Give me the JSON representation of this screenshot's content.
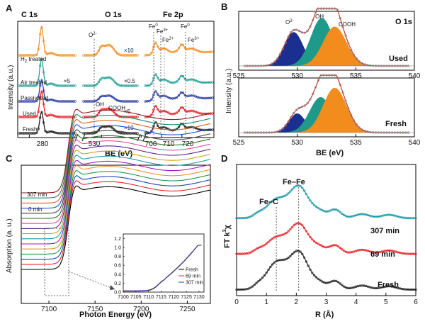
{
  "colors": {
    "H2_treated": "#f0922b",
    "Air_treated": "#2aa29a",
    "Passivated": "#2b3fa5",
    "Used": "#e8242b",
    "Fresh": "#222222",
    "O2": "#1a2f8f",
    "OH": "#1d9a8a",
    "COOH": "#f28c1c",
    "fit": "#c0392b",
    "xanes": [
      "#000000",
      "#e8242b",
      "#1f3fb4",
      "#1d9a4a",
      "#f0922b",
      "#9a1fb4",
      "#1d9aa8",
      "#c8a21d",
      "#5a2a8a",
      "#e04a9a",
      "#2a6f1d",
      "#444444",
      "#1b4fd8",
      "#d8621b",
      "#1d8a6a",
      "#8a1d1d"
    ]
  },
  "chart_data": [
    {
      "panel": "A",
      "type": "line",
      "titles": [
        "C 1s",
        "O 1s",
        "Fe 2p"
      ],
      "xlabel": "BE (eV)",
      "ylabel": "Intensity (a.u.)",
      "xticks": [
        "280",
        "530",
        "700",
        "710",
        "720"
      ],
      "series_labels": [
        "H2 treated",
        "Air treated",
        "Passivated",
        "Used",
        "Fresh"
      ],
      "multipliers": [
        "×10",
        "×5",
        "×0.5",
        "×5",
        "×10"
      ],
      "peak_labels": [
        "O2-",
        "OH",
        "COOH",
        "Fe0",
        "Fe3+",
        "Fe2+",
        "Fe0",
        "Fe3+"
      ],
      "c1s_peak": 284.8,
      "o1s_peaks": {
        "O2-": 530.0,
        "OH": 532.0,
        "COOH": 533.5
      },
      "fe2p_peaks": {
        "Fe0_2p3/2": 707.0,
        "Fe3+_2p3/2": 711.0,
        "Fe2+": 713.5,
        "Fe0_2p1/2": 720.0,
        "Fe3+_2p1/2": 724.5
      }
    },
    {
      "panel": "B",
      "type": "area",
      "title": "O 1s",
      "xlabel": "BE (eV)",
      "ylabel": "Intensity (a.u.)",
      "xlim": [
        525,
        540
      ],
      "xticks": [
        525,
        530,
        535,
        540
      ],
      "subplots": [
        {
          "name": "Used",
          "components": [
            {
              "name": "O2-",
              "center": 529.7,
              "sigma": 0.8,
              "height": 0.62
            },
            {
              "name": "OH",
              "center": 532.1,
              "sigma": 0.95,
              "height": 0.88
            },
            {
              "name": "COOH",
              "center": 533.2,
              "sigma": 1.0,
              "height": 0.72
            }
          ]
        },
        {
          "name": "Fresh",
          "components": [
            {
              "name": "O2-",
              "center": 530.0,
              "sigma": 0.7,
              "height": 0.35
            },
            {
              "name": "OH",
              "center": 532.0,
              "sigma": 0.95,
              "height": 0.65
            },
            {
              "name": "COOH",
              "center": 533.2,
              "sigma": 1.0,
              "height": 0.82
            }
          ]
        }
      ],
      "labels": [
        "O2-",
        "OH",
        "COOH",
        "O 1s",
        "Used",
        "Fresh"
      ]
    },
    {
      "panel": "C",
      "type": "line",
      "xlabel": "Photon Energy (eV)",
      "ylabel": "Absorption (a. u.)",
      "xlim": [
        7070,
        7275
      ],
      "xticks": [
        7100,
        7150,
        7200,
        7250
      ],
      "edge_energy": 7120,
      "n_series": 16,
      "time_labels": [
        "307 min",
        "0 min"
      ],
      "inset": {
        "xlim": [
          7100,
          7132
        ],
        "ylim": [
          0,
          1.3
        ],
        "xticks": [
          7100,
          7105,
          7110,
          7115,
          7120,
          7125,
          7130
        ],
        "yticks": [
          "0.0",
          "0.2",
          "0.4",
          "0.6",
          "0.8",
          "1.0",
          "1.2"
        ],
        "legend": [
          "Fresh",
          "69 min",
          "307 min"
        ],
        "legend_colors": [
          "#000000",
          "#e8242b",
          "#1f3fb4"
        ]
      }
    },
    {
      "panel": "D",
      "type": "line",
      "xlabel": "R (Å)",
      "ylabel": "FT k³χ",
      "xlim": [
        0,
        6
      ],
      "xticks": [
        0,
        1,
        2,
        3,
        4,
        5,
        6
      ],
      "annotations": [
        "Fe–C",
        "Fe–Fe"
      ],
      "fe_c_r": 1.33,
      "fe_fe_r": 2.08,
      "series": [
        {
          "name": "307 min",
          "color": "#1d9aa8",
          "offset": 2.1,
          "peak1": 0.55,
          "peak2": 0.9
        },
        {
          "name": "69 min",
          "color": "#e8242b",
          "offset": 1.05,
          "peak1": 0.48,
          "peak2": 0.85
        },
        {
          "name": "Fresh",
          "color": "#222222",
          "offset": 0.0,
          "peak1": 0.8,
          "peak2": 1.05
        }
      ]
    }
  ],
  "text": {
    "panelA": "A",
    "panelB": "B",
    "panelC": "C",
    "panelD": "D",
    "a_c1s": "C 1s",
    "a_o1s": "O 1s",
    "a_fe2p": "Fe 2p",
    "a_ylabel": "Intensity (a.u.)",
    "a_xlabel": "BE (eV)",
    "a_h2": "H",
    "a_h2sub": "2",
    "a_h2rest": " treated",
    "a_air": "Air treated",
    "a_pass": "Passivated",
    "a_used": "Used",
    "a_fresh": "Fresh",
    "a_x10a": "×10",
    "a_x5a": "×5",
    "a_x05": "×0.5",
    "a_x5b": "×5",
    "a_x10b": "×10",
    "a_o2": "O",
    "a_o2sup": "2-",
    "a_oh": "OH",
    "a_cooh": "COOH",
    "a_fe0a": "Fe",
    "a_fe0sup": "0",
    "a_fe3a": "Fe",
    "a_fe3sup": "3+",
    "a_fe2": "Fe",
    "a_fe2sup": "2+",
    "a_fe0b": "Fe",
    "a_fe0bsup": "0",
    "a_fe3b": "Fe",
    "a_fe3bsup": "3+",
    "a_t280": "280",
    "a_t530": "530",
    "a_t700": "700",
    "a_t710": "710",
    "a_t720": "720",
    "b_title": "O 1s",
    "b_used": "Used",
    "b_fresh": "Fresh",
    "b_ylabel": "Intensity (a.u.)",
    "b_xlabel": "BE (eV)",
    "b_o2": "O",
    "b_o2sup": "2-",
    "b_oh": "OH",
    "b_cooh": "COOH",
    "c_307": "307 min",
    "c_0": "0 min",
    "c_ylabel": "Absorption (a. u.)",
    "c_xlabel": "Photon Energy (eV)",
    "c_l1": "Fresh",
    "c_l2": "69 min",
    "c_l3": "307 min",
    "d_fec": "Fe–C",
    "d_fefe": "Fe–Fe",
    "d_307": "307 min",
    "d_69": "69 min",
    "d_fresh": "Fresh",
    "d_ylabel_a": "FT k",
    "d_ylabel_sup": "3",
    "d_ylabel_b": "χ",
    "d_xlabel": "R (Å)"
  }
}
